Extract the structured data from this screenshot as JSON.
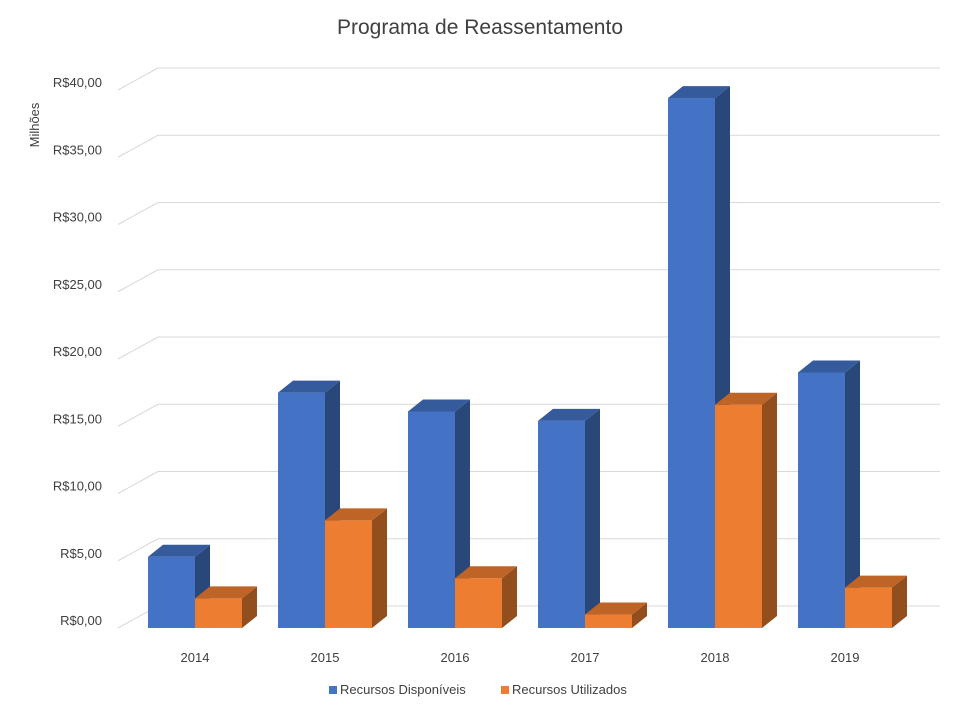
{
  "chart_data": {
    "type": "bar",
    "title": "Programa de Reassentamento",
    "ylabel": "Milhões",
    "categories": [
      "2014",
      "2015",
      "2016",
      "2017",
      "2018",
      "2019"
    ],
    "series": [
      {
        "name": "Recursos Disponíveis",
        "color": "#4472C4",
        "values": [
          5.3,
          17.5,
          16.1,
          15.4,
          39.4,
          19.0
        ]
      },
      {
        "name": "Recursos Utilizados",
        "color": "#ED7D31",
        "values": [
          2.2,
          8.0,
          3.7,
          1.0,
          16.6,
          3.0
        ]
      }
    ],
    "yticks": [
      "R$0,00",
      "R$5,00",
      "R$10,00",
      "R$15,00",
      "R$20,00",
      "R$25,00",
      "R$30,00",
      "R$35,00",
      "R$40,00"
    ],
    "ylim": [
      0,
      40
    ],
    "grid": true,
    "legend": "bottom",
    "style": "3d-column"
  }
}
